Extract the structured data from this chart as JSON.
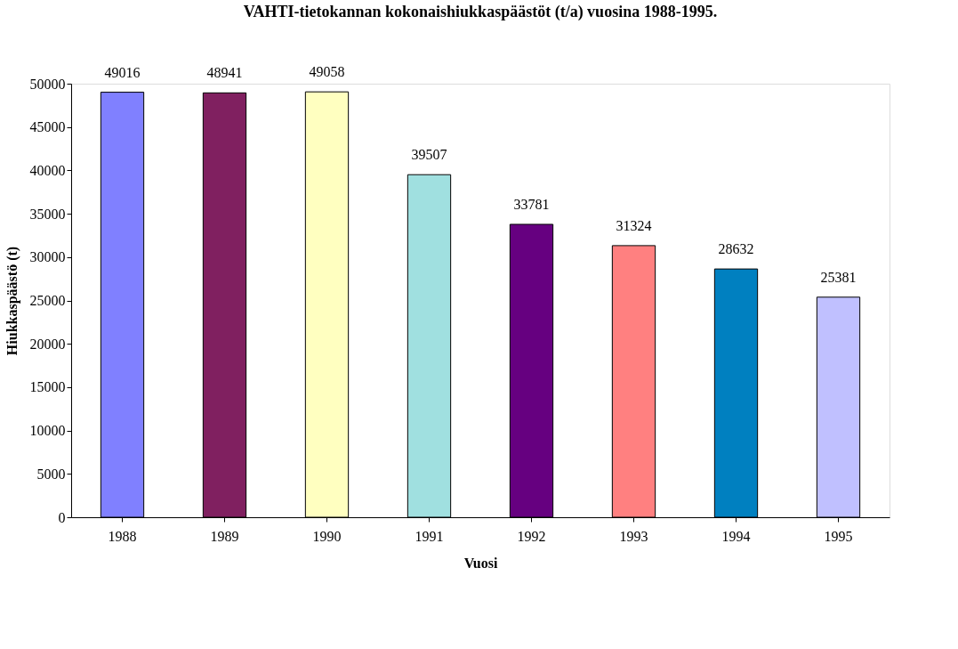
{
  "chart_data": {
    "type": "bar",
    "title": "VAHTI-tietokannan kokonaishiukkaspäästöt (t/a) vuosina 1988-1995.",
    "xlabel": "Vuosi",
    "ylabel": "Hiukkaspäästö (t)",
    "categories": [
      "1988",
      "1989",
      "1990",
      "1991",
      "1992",
      "1993",
      "1994",
      "1995"
    ],
    "values": [
      49016,
      48941,
      49058,
      39507,
      33781,
      31324,
      28632,
      25381
    ],
    "colors": [
      "#8080ff",
      "#802060",
      "#ffffc0",
      "#a0e0e0",
      "#660080",
      "#ff8080",
      "#0080c0",
      "#c0c0ff"
    ],
    "ylim": [
      0,
      50000
    ],
    "yticks": [
      0,
      5000,
      10000,
      15000,
      20000,
      25000,
      30000,
      35000,
      40000,
      45000,
      50000
    ],
    "grid": false,
    "legend": false,
    "data_labels": true
  }
}
